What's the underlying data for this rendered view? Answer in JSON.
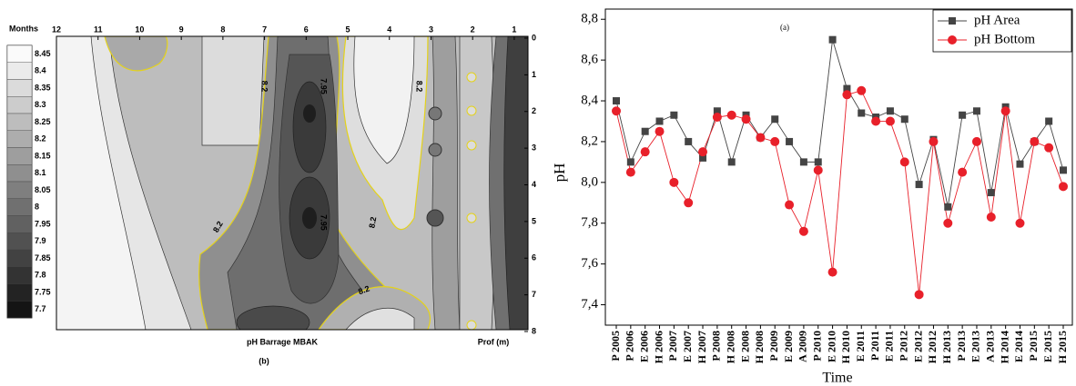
{
  "chart_data": [
    {
      "type": "contour",
      "corner_label": "Months",
      "x_label": "pH Barrage MBAK",
      "y_label": "Prof (m)",
      "panel_label": "(b)",
      "xlim": [
        12,
        0.67
      ],
      "xticks": [
        12,
        11,
        10,
        9,
        8,
        7,
        6,
        5,
        4,
        3,
        2,
        1
      ],
      "ylim": [
        0,
        8
      ],
      "yticks": [
        0,
        1,
        2,
        3,
        4,
        5,
        6,
        7,
        8
      ],
      "levels": [
        8.45,
        8.4,
        8.35,
        8.3,
        8.25,
        8.2,
        8.15,
        8.1,
        8.05,
        8,
        7.95,
        7.9,
        7.85,
        7.8,
        7.75,
        7.7
      ],
      "contour_labels": [
        8.2,
        7.95,
        8.2,
        8.2,
        7.95,
        8.2,
        8.2
      ]
    },
    {
      "type": "line",
      "panel_label": "(a)",
      "x_label": "Time",
      "y_label": "pH",
      "categories": [
        "P 2005",
        "P 2006",
        "E 2006",
        "H 2006",
        "P 2007",
        "E 2007",
        "H 2007",
        "P 2008",
        "H 2008",
        "E 2008",
        "H 2008",
        "P 2009",
        "E 2009",
        "A 2009",
        "P 2010",
        "E 2010",
        "H 2010",
        "E 2011",
        "P 2011",
        "E 2011",
        "P 2012",
        "E 2012",
        "H 2012",
        "H 2013",
        "P 2013",
        "E 2013",
        "A 2013",
        "H 2014",
        "E 2014",
        "P 2015",
        "E 2015",
        "H 2015"
      ],
      "series": [
        {
          "name": "pH Area",
          "color": "#444444",
          "marker": "square",
          "values": [
            8.4,
            8.1,
            8.25,
            8.3,
            8.33,
            8.2,
            8.12,
            8.35,
            8.1,
            8.33,
            8.22,
            8.31,
            8.2,
            8.1,
            8.1,
            8.7,
            8.46,
            8.34,
            8.32,
            8.35,
            8.31,
            7.99,
            8.21,
            7.88,
            8.33,
            8.35,
            7.95,
            8.37,
            8.09,
            8.2,
            8.3,
            8.06
          ]
        },
        {
          "name": "pH Bottom",
          "color": "#e8202a",
          "marker": "circle",
          "values": [
            8.35,
            8.05,
            8.15,
            8.25,
            8.0,
            7.9,
            8.15,
            8.32,
            8.33,
            8.31,
            8.22,
            8.2,
            7.89,
            7.76,
            8.06,
            7.56,
            8.43,
            8.45,
            8.3,
            8.3,
            8.1,
            7.45,
            8.2,
            7.8,
            8.05,
            8.2,
            7.83,
            8.35,
            7.8,
            8.2,
            8.17,
            7.98
          ]
        }
      ],
      "ylim": [
        7.3,
        8.85
      ],
      "yticks": [
        {
          "value": 7.4,
          "label": "7,4"
        },
        {
          "value": 7.6,
          "label": "7,6"
        },
        {
          "value": 7.8,
          "label": "7,8"
        },
        {
          "value": 8.0,
          "label": "8,0"
        },
        {
          "value": 8.2,
          "label": "8,2"
        },
        {
          "value": 8.4,
          "label": "8,4"
        },
        {
          "value": 8.6,
          "label": "8,6"
        },
        {
          "value": 8.8,
          "label": "8,8"
        }
      ],
      "legend": "upper right"
    }
  ]
}
